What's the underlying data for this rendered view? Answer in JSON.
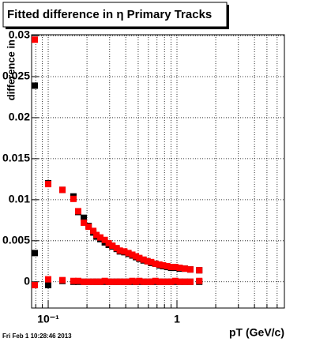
{
  "chart_data": {
    "type": "scatter",
    "title": "Fitted difference in  η  Primary Tracks",
    "y_label": "difference in",
    "x_label": "pT (GeV/c)",
    "footer": "Fri Feb  1 10:28:46 2013",
    "log_x": true,
    "grid": true,
    "xlim": [
      0.0743,
      6.83
    ],
    "xticks": [
      {
        "value": 0.1,
        "label": "10⁻¹"
      },
      1
    ],
    "xminor_ticks": [
      0.08,
      0.09,
      0.2,
      0.3,
      0.4,
      0.5,
      0.6,
      0.7,
      0.8,
      0.9,
      2,
      3,
      4,
      5,
      6
    ],
    "ylim": [
      -0.0032,
      0.0301
    ],
    "yticks": [
      0,
      0.005,
      0.01,
      0.015,
      0.02,
      0.025,
      0.03
    ],
    "x": [
      0.0787,
      0.1,
      0.129,
      0.157,
      0.171,
      0.189,
      0.206,
      0.224,
      0.237,
      0.254,
      0.275,
      0.295,
      0.315,
      0.34,
      0.36,
      0.39,
      0.42,
      0.45,
      0.48,
      0.51,
      0.55,
      0.59,
      0.63,
      0.68,
      0.73,
      0.78,
      0.84,
      0.9,
      0.97,
      1.05,
      1.15,
      1.27,
      1.49
    ],
    "series": [
      {
        "color": "#000000",
        "values": [
          0.0239,
          0.012,
          0.0112,
          0.0104,
          0.0085,
          0.0078,
          0.0068,
          0.006,
          0.0055,
          0.0052,
          0.0048,
          0.0045,
          0.0043,
          0.004,
          0.0037,
          0.0036,
          0.0034,
          0.0032,
          0.003,
          0.0028,
          0.0026,
          0.0025,
          0.0023,
          0.0022,
          0.002,
          0.0019,
          0.0018,
          0.0017,
          0.0017,
          0.0016,
          0.0016,
          0.0015,
          0.0014
        ]
      },
      {
        "color": "#000000",
        "values": [
          0.0035,
          -0.0004,
          0.0001,
          0,
          0,
          0,
          0,
          0,
          0,
          0,
          0,
          0,
          0,
          0,
          0,
          0,
          0,
          0,
          0,
          0,
          0,
          0,
          0,
          0,
          0,
          0,
          0,
          0,
          0,
          0,
          0,
          0,
          0
        ]
      },
      {
        "color": "#ff0000",
        "values": [
          0.0295,
          0.0119,
          0.0112,
          0.0101,
          0.0086,
          0.0072,
          0.0067,
          0.0062,
          0.0057,
          0.0054,
          0.0051,
          0.0047,
          0.0044,
          0.0041,
          0.0038,
          0.0037,
          0.0035,
          0.0033,
          0.0031,
          0.0029,
          0.0027,
          0.0025,
          0.0024,
          0.0022,
          0.0021,
          0.002,
          0.0019,
          0.0018,
          0.0018,
          0.0017,
          0.0016,
          0.0015,
          0.0014
        ]
      },
      {
        "color": "#ff0000",
        "values": [
          -0.0004,
          0.0003,
          0.0002,
          0.0001,
          0.0001,
          0,
          0,
          0,
          0,
          0,
          0.0001,
          0,
          0,
          0,
          0,
          0,
          0,
          0.0001,
          0,
          0.0001,
          0,
          0,
          0,
          0.0001,
          0,
          0,
          0,
          0,
          0.0001,
          0,
          0,
          0,
          0.0001
        ]
      }
    ]
  }
}
